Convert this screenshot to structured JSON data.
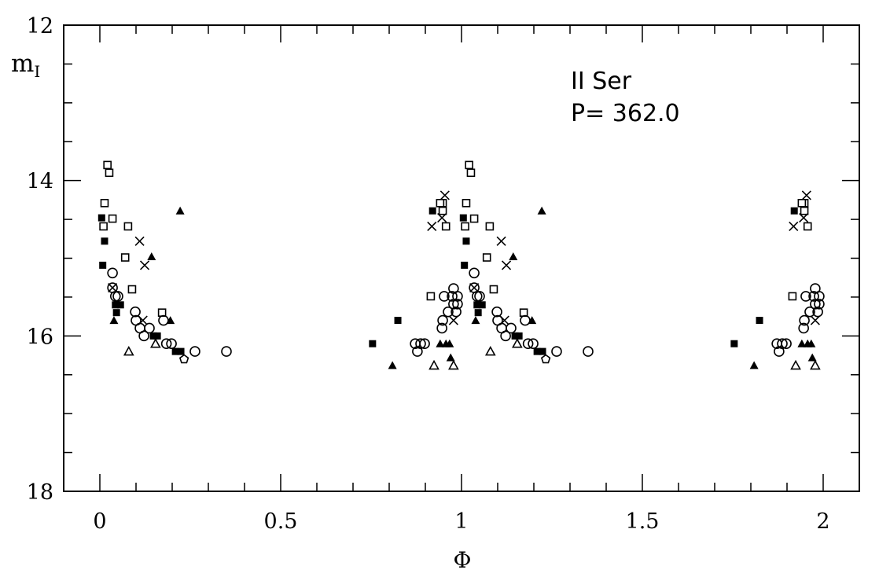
{
  "chart_data": {
    "type": "scatter",
    "title": "",
    "annotations": [
      "II Ser",
      "P= 362.0"
    ],
    "xlabel": "Φ",
    "ylabel_main": "m",
    "ylabel_sub": "I",
    "xlim": [
      -0.1,
      2.1
    ],
    "ylim": [
      18,
      12
    ],
    "y_inverted": true,
    "x_ticks": [
      "0",
      "0.5",
      "1",
      "1.5",
      "2"
    ],
    "x_tick_values": [
      0,
      0.5,
      1,
      1.5,
      2
    ],
    "y_ticks": [
      "12",
      "14",
      "16",
      "18"
    ],
    "y_tick_values": [
      12,
      14,
      16,
      18
    ],
    "x_minor_step": 0.1,
    "y_minor_step": 0.5,
    "grid": false,
    "phase_folded_copies": [
      0,
      1
    ],
    "points": [
      {
        "x": 0.021,
        "y": 13.8,
        "m": "open-square"
      },
      {
        "x": 0.026,
        "y": 13.9,
        "m": "open-square"
      },
      {
        "x": 0.013,
        "y": 14.29,
        "m": "open-square"
      },
      {
        "x": 0.222,
        "y": 14.39,
        "m": "filled-triangle"
      },
      {
        "x": 0.005,
        "y": 14.48,
        "m": "filled-square"
      },
      {
        "x": 0.035,
        "y": 14.49,
        "m": "open-square"
      },
      {
        "x": 0.01,
        "y": 14.59,
        "m": "open-square"
      },
      {
        "x": 0.078,
        "y": 14.59,
        "m": "open-square"
      },
      {
        "x": 0.013,
        "y": 14.78,
        "m": "filled-square"
      },
      {
        "x": 0.11,
        "y": 14.78,
        "m": "cross"
      },
      {
        "x": 0.07,
        "y": 14.99,
        "m": "open-square"
      },
      {
        "x": 0.143,
        "y": 14.98,
        "m": "filled-triangle"
      },
      {
        "x": 0.008,
        "y": 15.09,
        "m": "filled-square"
      },
      {
        "x": 0.124,
        "y": 15.09,
        "m": "cross"
      },
      {
        "x": 0.035,
        "y": 15.19,
        "m": "open-circle"
      },
      {
        "x": 0.035,
        "y": 15.38,
        "m": "cross"
      },
      {
        "x": 0.035,
        "y": 15.38,
        "m": "open-circle"
      },
      {
        "x": 0.089,
        "y": 15.4,
        "m": "open-square"
      },
      {
        "x": 0.043,
        "y": 15.49,
        "m": "open-circle"
      },
      {
        "x": 0.05,
        "y": 15.49,
        "m": "open-circle"
      },
      {
        "x": 0.043,
        "y": 15.6,
        "m": "filled-square"
      },
      {
        "x": 0.057,
        "y": 15.6,
        "m": "filled-square"
      },
      {
        "x": 0.046,
        "y": 15.7,
        "m": "filled-square"
      },
      {
        "x": 0.039,
        "y": 15.8,
        "m": "filled-triangle"
      },
      {
        "x": 0.098,
        "y": 15.69,
        "m": "open-circle"
      },
      {
        "x": 0.172,
        "y": 15.7,
        "m": "open-square"
      },
      {
        "x": 0.176,
        "y": 15.8,
        "m": "open-circle"
      },
      {
        "x": 0.195,
        "y": 15.8,
        "m": "filled-triangle"
      },
      {
        "x": 0.1,
        "y": 15.8,
        "m": "open-circle"
      },
      {
        "x": 0.119,
        "y": 15.8,
        "m": "cross"
      },
      {
        "x": 0.111,
        "y": 15.9,
        "m": "open-circle"
      },
      {
        "x": 0.137,
        "y": 15.9,
        "m": "open-circle"
      },
      {
        "x": 0.122,
        "y": 16.0,
        "m": "open-circle"
      },
      {
        "x": 0.148,
        "y": 16.0,
        "m": "filled-square"
      },
      {
        "x": 0.159,
        "y": 16.0,
        "m": "filled-square"
      },
      {
        "x": 0.154,
        "y": 16.1,
        "m": "open-triangle"
      },
      {
        "x": 0.184,
        "y": 16.1,
        "m": "open-circle"
      },
      {
        "x": 0.198,
        "y": 16.1,
        "m": "open-circle"
      },
      {
        "x": 0.08,
        "y": 16.2,
        "m": "open-triangle"
      },
      {
        "x": 0.209,
        "y": 16.2,
        "m": "filled-square"
      },
      {
        "x": 0.224,
        "y": 16.2,
        "m": "filled-square"
      },
      {
        "x": 0.263,
        "y": 16.2,
        "m": "open-circle"
      },
      {
        "x": 0.35,
        "y": 16.2,
        "m": "open-circle"
      },
      {
        "x": 0.233,
        "y": 16.3,
        "m": "open-pentagon"
      },
      {
        "x": 0.954,
        "y": 14.19,
        "m": "cross"
      },
      {
        "x": 0.948,
        "y": 14.29,
        "m": "open-square"
      },
      {
        "x": 0.941,
        "y": 14.29,
        "m": "open-square"
      },
      {
        "x": 0.92,
        "y": 14.39,
        "m": "filled-square"
      },
      {
        "x": 0.948,
        "y": 14.39,
        "m": "open-square"
      },
      {
        "x": 0.946,
        "y": 14.48,
        "m": "cross"
      },
      {
        "x": 0.918,
        "y": 14.59,
        "m": "cross"
      },
      {
        "x": 0.957,
        "y": 14.59,
        "m": "open-square"
      },
      {
        "x": 0.978,
        "y": 15.39,
        "m": "open-circle"
      },
      {
        "x": 0.915,
        "y": 15.49,
        "m": "open-square"
      },
      {
        "x": 0.952,
        "y": 15.49,
        "m": "open-circle"
      },
      {
        "x": 0.974,
        "y": 15.49,
        "m": "open-circle"
      },
      {
        "x": 0.989,
        "y": 15.49,
        "m": "open-circle"
      },
      {
        "x": 0.978,
        "y": 15.59,
        "m": "open-circle"
      },
      {
        "x": 0.989,
        "y": 15.59,
        "m": "open-circle"
      },
      {
        "x": 0.963,
        "y": 15.69,
        "m": "open-circle"
      },
      {
        "x": 0.985,
        "y": 15.69,
        "m": "open-circle"
      },
      {
        "x": 0.948,
        "y": 15.8,
        "m": "open-circle"
      },
      {
        "x": 0.978,
        "y": 15.8,
        "m": "cross"
      },
      {
        "x": 0.946,
        "y": 15.9,
        "m": "open-circle"
      },
      {
        "x": 0.824,
        "y": 15.8,
        "m": "filled-square"
      },
      {
        "x": 0.754,
        "y": 16.1,
        "m": "filled-square"
      },
      {
        "x": 0.872,
        "y": 16.1,
        "m": "open-circle"
      },
      {
        "x": 0.887,
        "y": 16.1,
        "m": "open-circle"
      },
      {
        "x": 0.898,
        "y": 16.1,
        "m": "open-circle"
      },
      {
        "x": 0.878,
        "y": 16.2,
        "m": "open-circle"
      },
      {
        "x": 0.941,
        "y": 16.1,
        "m": "filled-triangle"
      },
      {
        "x": 0.957,
        "y": 16.1,
        "m": "filled-triangle"
      },
      {
        "x": 0.967,
        "y": 16.1,
        "m": "filled-triangle"
      },
      {
        "x": 0.809,
        "y": 16.38,
        "m": "filled-triangle"
      },
      {
        "x": 0.97,
        "y": 16.28,
        "m": "filled-triangle"
      },
      {
        "x": 0.924,
        "y": 16.38,
        "m": "open-triangle"
      },
      {
        "x": 0.978,
        "y": 16.38,
        "m": "open-triangle"
      }
    ]
  }
}
